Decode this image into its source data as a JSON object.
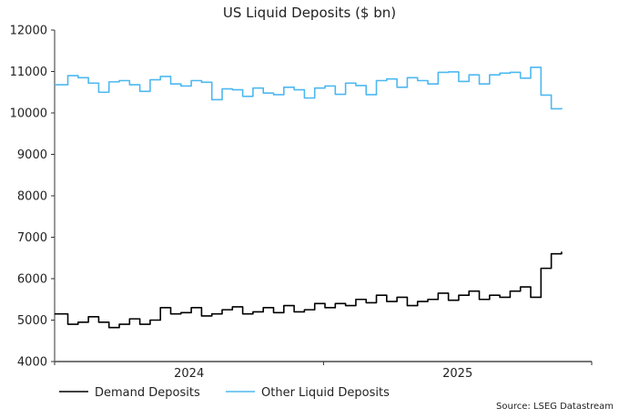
{
  "chart_data": {
    "type": "line",
    "title": "US Liquid Deposits ($ bn)",
    "xlabel": "",
    "ylabel": "",
    "ylim": [
      4000,
      12000
    ],
    "yticks": [
      4000,
      5000,
      6000,
      7000,
      8000,
      9000,
      10000,
      11000,
      12000
    ],
    "xlim": [
      "2024-01-01",
      "2026-01-01"
    ],
    "xtick_labels": [
      "2024",
      "2025"
    ],
    "grid": false,
    "legend": "bottom-left",
    "start_date": "2024-01-05",
    "frequency": "biweekly",
    "series": [
      {
        "name": "Demand Deposits",
        "color": "#000000",
        "values": [
          5150,
          4900,
          4950,
          5080,
          4950,
          4820,
          4900,
          5030,
          4900,
          5000,
          5300,
          5150,
          5180,
          5300,
          5100,
          5150,
          5250,
          5320,
          5150,
          5200,
          5300,
          5180,
          5350,
          5200,
          5250,
          5400,
          5300,
          5400,
          5350,
          5500,
          5420,
          5600,
          5450,
          5550,
          5350,
          5450,
          5500,
          5650,
          5480,
          5600,
          5700,
          5500,
          5600,
          5550,
          5700,
          5800,
          5550,
          6250,
          6600,
          6650
        ]
      },
      {
        "name": "Other Liquid Deposits",
        "color": "#4db8f0",
        "values": [
          10680,
          10900,
          10850,
          10720,
          10500,
          10750,
          10780,
          10680,
          10520,
          10800,
          10880,
          10700,
          10650,
          10780,
          10740,
          10320,
          10580,
          10560,
          10400,
          10600,
          10480,
          10440,
          10620,
          10560,
          10360,
          10600,
          10650,
          10450,
          10720,
          10660,
          10440,
          10780,
          10820,
          10620,
          10850,
          10780,
          10700,
          10980,
          10990,
          10760,
          10920,
          10700,
          10920,
          10960,
          10980,
          10840,
          11100,
          10430,
          10100,
          10120
        ]
      }
    ],
    "source": "Source: LSEG Datastream"
  }
}
